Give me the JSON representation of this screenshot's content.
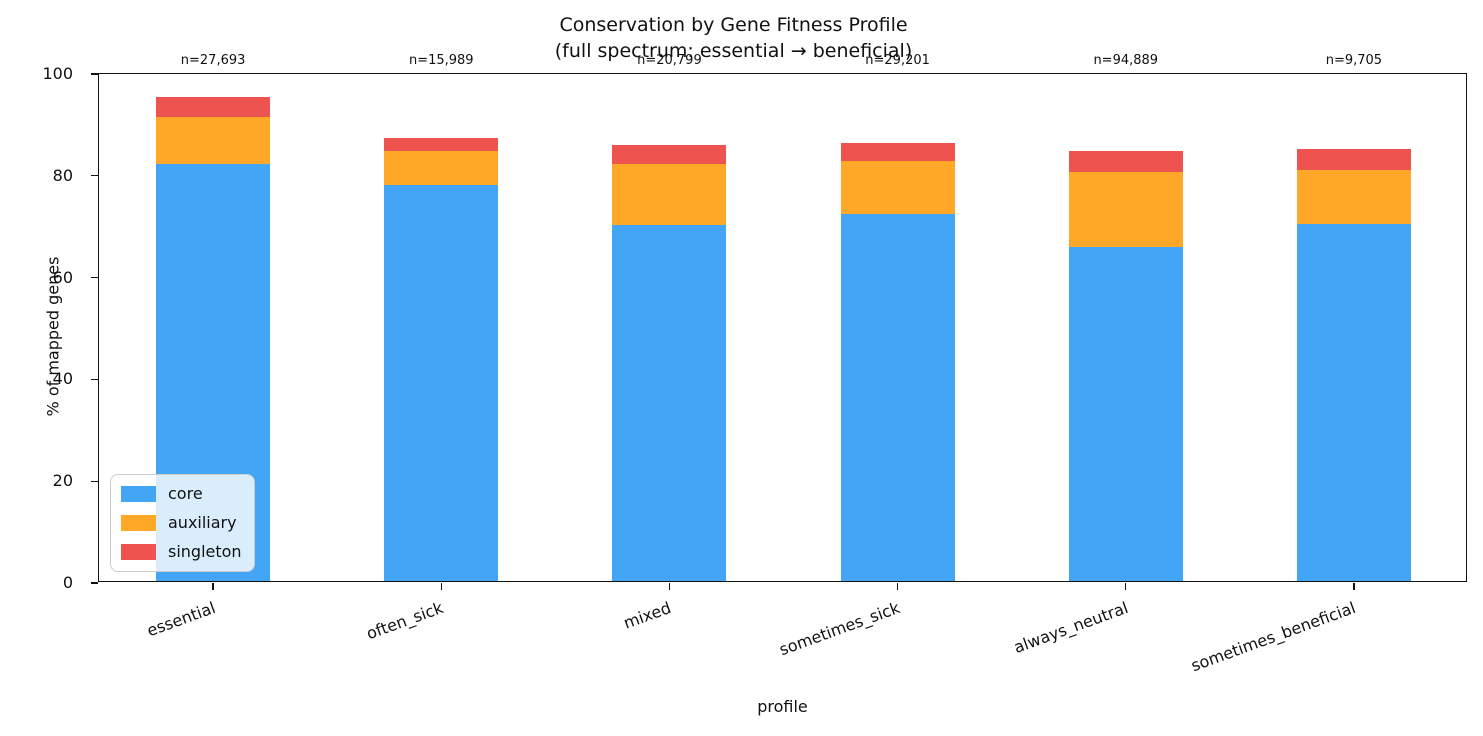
{
  "chart_data": {
    "type": "bar",
    "stacked": true,
    "title": "Conservation by Gene Fitness Profile",
    "subtitle": "(full spectrum: essential → beneficial)",
    "xlabel": "profile",
    "ylabel": "% of mapped genes",
    "categories": [
      "essential",
      "often_sick",
      "mixed",
      "sometimes_sick",
      "always_neutral",
      "sometimes_beneficial"
    ],
    "bar_annotations": [
      "n=27,693",
      "n=15,989",
      "n=20,799",
      "n=29,201",
      "n=94,889",
      "n=9,705"
    ],
    "series": [
      {
        "name": "core",
        "color": "#42A5F5",
        "values": [
          81.9,
          77.8,
          69.9,
          72.2,
          65.7,
          70.1
        ]
      },
      {
        "name": "auxiliary",
        "color": "#FFA726",
        "values": [
          9.2,
          6.7,
          12.1,
          10.3,
          14.7,
          10.7
        ]
      },
      {
        "name": "singleton",
        "color": "#EF5350",
        "values": [
          4.0,
          2.5,
          3.7,
          3.5,
          4.1,
          4.1
        ]
      }
    ],
    "ylim": [
      0,
      100
    ],
    "yticks": [
      0,
      20,
      40,
      60,
      80,
      100
    ],
    "grid": false,
    "legend_position": "lower left",
    "x_tick_rotation_deg": 20,
    "bar_width_fraction": 0.5
  }
}
